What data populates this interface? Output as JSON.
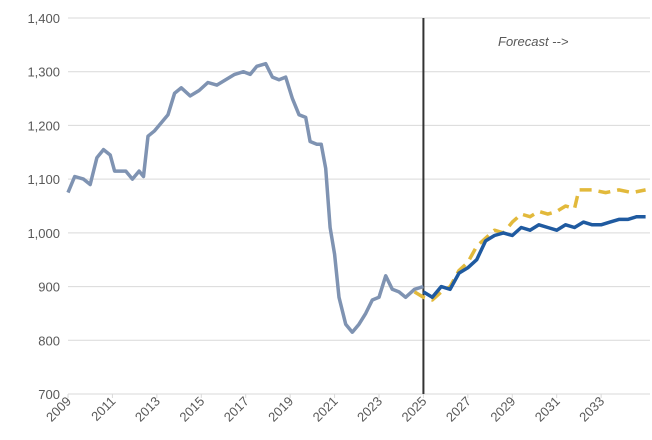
{
  "chart_data": {
    "type": "line",
    "annotation": "Forecast -->",
    "vline": 2025,
    "grid": true,
    "xlim": [
      2009,
      2035.2
    ],
    "xticks": [
      2009,
      2011,
      2013,
      2015,
      2017,
      2019,
      2021,
      2023,
      2025,
      2027,
      2029,
      2031,
      2033
    ],
    "ylim": [
      700,
      1400
    ],
    "yticks": [
      {
        "value": 700,
        "label": "700"
      },
      {
        "value": 800,
        "label": "800"
      },
      {
        "value": 900,
        "label": "900"
      },
      {
        "value": 1000,
        "label": "1,000"
      },
      {
        "value": 1100,
        "label": "1,100"
      },
      {
        "value": 1200,
        "label": "1,200"
      },
      {
        "value": 1300,
        "label": "1,300"
      },
      {
        "value": 1400,
        "label": "1,400"
      }
    ],
    "series": [
      {
        "color": "#7f93b2",
        "dash": false,
        "x": [
          2009.0,
          2009.3,
          2009.7,
          2010.0,
          2010.3,
          2010.6,
          2010.9,
          2011.1,
          2011.6,
          2011.9,
          2012.2,
          2012.4,
          2012.6,
          2012.9,
          2013.2,
          2013.5,
          2013.8,
          2014.1,
          2014.5,
          2014.9,
          2015.3,
          2015.7,
          2016.1,
          2016.5,
          2016.9,
          2017.2,
          2017.5,
          2017.9,
          2018.2,
          2018.5,
          2018.8,
          2019.1,
          2019.4,
          2019.7,
          2019.9,
          2020.2,
          2020.4,
          2020.6,
          2020.8,
          2021.0,
          2021.2,
          2021.5,
          2021.8,
          2022.1,
          2022.4,
          2022.7,
          2023.0,
          2023.3,
          2023.6,
          2023.9,
          2024.2,
          2024.6,
          2025.0
        ],
        "values": [
          1075,
          1105,
          1100,
          1090,
          1140,
          1155,
          1145,
          1115,
          1115,
          1100,
          1115,
          1105,
          1180,
          1190,
          1205,
          1220,
          1260,
          1270,
          1255,
          1265,
          1280,
          1275,
          1285,
          1295,
          1300,
          1295,
          1310,
          1315,
          1290,
          1285,
          1290,
          1250,
          1220,
          1215,
          1170,
          1165,
          1165,
          1120,
          1010,
          960,
          880,
          830,
          815,
          830,
          850,
          875,
          880,
          920,
          895,
          890,
          880,
          895,
          900
        ]
      },
      {
        "color": "#e2b93b",
        "dash": true,
        "x": [
          2024.6,
          2025.0,
          2025.4,
          2025.8,
          2026.2,
          2026.6,
          2027.0,
          2027.4,
          2027.8,
          2028.2,
          2028.6,
          2029.0,
          2029.4,
          2029.8,
          2030.2,
          2030.6,
          2031.0,
          2031.4,
          2031.8,
          2032.0,
          2032.6,
          2033.2,
          2033.8,
          2034.4,
          2035.0
        ],
        "values": [
          890,
          880,
          875,
          890,
          900,
          930,
          945,
          975,
          990,
          1005,
          1000,
          1020,
          1035,
          1030,
          1040,
          1035,
          1040,
          1050,
          1045,
          1080,
          1080,
          1075,
          1080,
          1075,
          1080
        ]
      },
      {
        "color": "#1f5aa0",
        "dash": false,
        "x": [
          2025.0,
          2025.4,
          2025.8,
          2026.2,
          2026.6,
          2027.0,
          2027.4,
          2027.8,
          2028.2,
          2028.6,
          2029.0,
          2029.4,
          2029.8,
          2030.2,
          2030.6,
          2031.0,
          2031.4,
          2031.8,
          2032.2,
          2032.6,
          2033.0,
          2033.4,
          2033.8,
          2034.2,
          2034.6,
          2035.0
        ],
        "values": [
          890,
          880,
          900,
          895,
          925,
          935,
          950,
          985,
          995,
          1000,
          995,
          1010,
          1005,
          1015,
          1010,
          1005,
          1015,
          1010,
          1020,
          1015,
          1015,
          1020,
          1025,
          1025,
          1030,
          1030
        ]
      }
    ]
  }
}
